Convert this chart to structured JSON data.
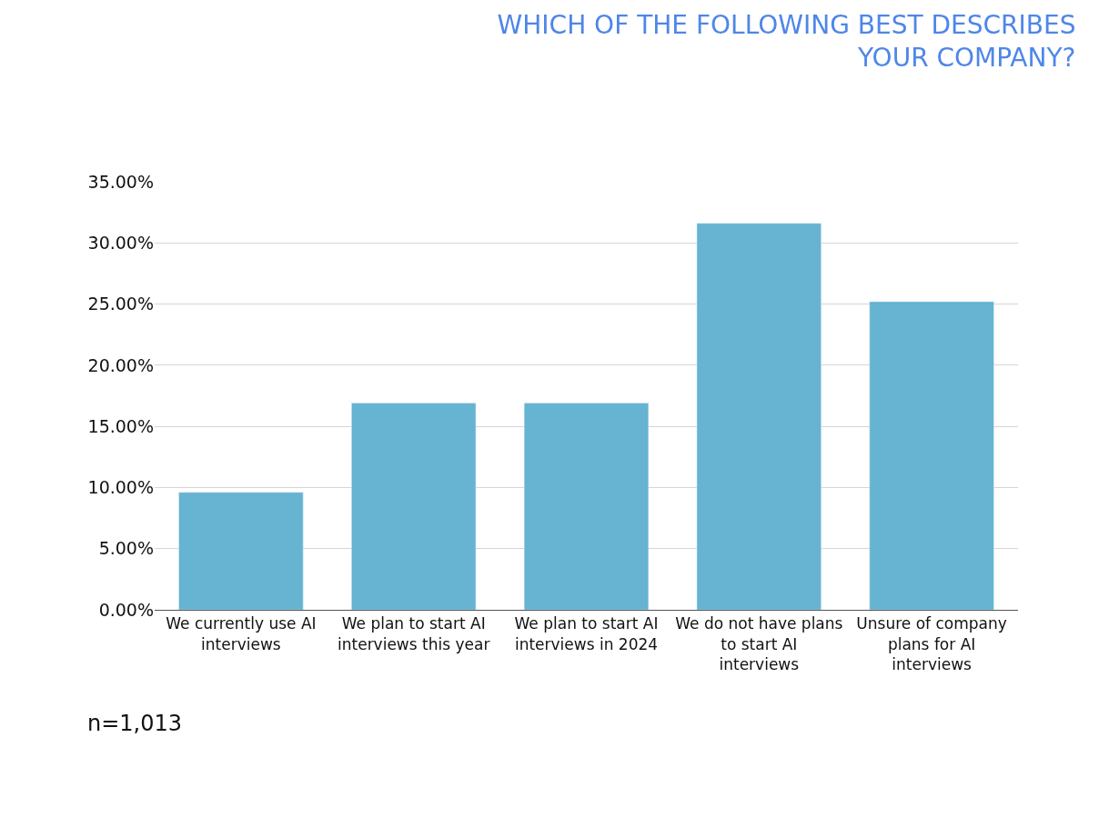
{
  "chart_data": {
    "type": "bar",
    "title": "WHICH OF THE FOLLOWING BEST DESCRIBES YOUR COMPANY?",
    "categories": [
      "We currently use AI interviews",
      "We plan to start AI interviews this year",
      "We plan to start AI interviews in 2024",
      "We do not have plans to start AI interviews",
      "Unsure of company plans for AI interviews"
    ],
    "values": [
      9.6,
      16.9,
      16.9,
      31.6,
      25.2
    ],
    "color": "#66b3d2",
    "ylim": [
      0,
      35
    ],
    "yticks": [
      {
        "value": 0,
        "label": "0.00%"
      },
      {
        "value": 5,
        "label": "5.00%"
      },
      {
        "value": 10,
        "label": "10.00%"
      },
      {
        "value": 15,
        "label": "15.00%"
      },
      {
        "value": 20,
        "label": "20.00%"
      },
      {
        "value": 25,
        "label": "25.00%"
      },
      {
        "value": 30,
        "label": "30.00%"
      },
      {
        "value": 35,
        "label": "35.00%"
      }
    ],
    "grid": "y",
    "annotations": [
      "n=1,013"
    ]
  }
}
